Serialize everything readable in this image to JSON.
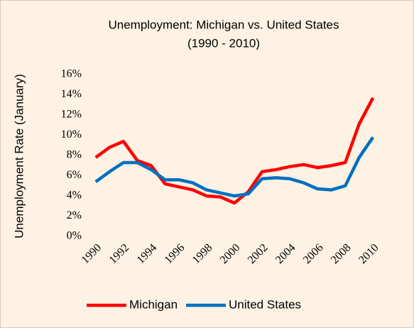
{
  "chart_data": {
    "type": "line",
    "title": "Unemployment: Michigan vs. United States",
    "subtitle": "(1990 - 2010)",
    "y_label": "Unemployment Rate (January)",
    "categories": [
      "1990",
      null,
      "1992",
      null,
      "1994",
      null,
      "1996",
      null,
      "1998",
      null,
      "2000",
      null,
      "2002",
      null,
      "2004",
      null,
      "2006",
      null,
      "2008",
      null,
      "2010"
    ],
    "series": [
      {
        "name": "Michigan",
        "color": "#ff0000",
        "values": [
          7.8,
          8.8,
          9.4,
          7.5,
          7.0,
          5.2,
          4.9,
          4.6,
          4.0,
          3.9,
          3.3,
          4.4,
          6.4,
          6.6,
          6.9,
          7.1,
          6.8,
          7.0,
          7.3,
          11.1,
          13.7
        ]
      },
      {
        "name": "United States",
        "color": "#0070c0",
        "values": [
          5.4,
          6.4,
          7.3,
          7.3,
          6.6,
          5.6,
          5.6,
          5.3,
          4.6,
          4.3,
          4.0,
          4.2,
          5.7,
          5.8,
          5.7,
          5.3,
          4.7,
          4.6,
          5.0,
          7.8,
          9.8
        ]
      }
    ],
    "ylim": [
      0,
      16
    ],
    "yticks": [
      {
        "value": 0,
        "label": "0%"
      },
      {
        "value": 2,
        "label": "2%"
      },
      {
        "value": 4,
        "label": "4%"
      },
      {
        "value": 6,
        "label": "6%"
      },
      {
        "value": 8,
        "label": "8%"
      },
      {
        "value": 10,
        "label": "10%"
      },
      {
        "value": 12,
        "label": "12%"
      },
      {
        "value": 14,
        "label": "14%"
      },
      {
        "value": 16,
        "label": "16%"
      }
    ],
    "grid": false,
    "legend": "bottom"
  }
}
